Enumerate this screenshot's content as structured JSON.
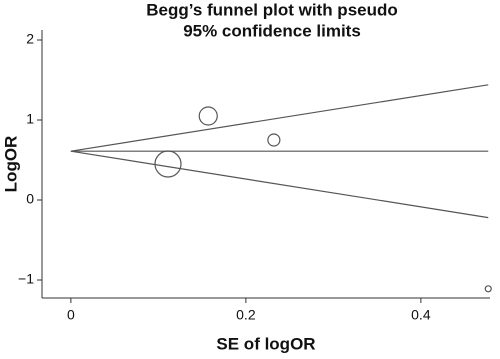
{
  "chart_data": {
    "type": "scatter",
    "title": [
      "Begg’s funnel plot with pseudo",
      "95% confidence limits"
    ],
    "x_label": "SE of logOR",
    "y_label": "LogOR",
    "x": [
      0.111,
      0.157,
      0.232,
      0.477
    ],
    "values": [
      0.45,
      1.05,
      0.75,
      -1.11
    ],
    "sizes": [
      13,
      9,
      6,
      3
    ],
    "color": "#555555",
    "lines": [
      {
        "x": [
          0,
          0.477
        ],
        "values": [
          0.61,
          1.44
        ]
      },
      {
        "x": [
          0,
          0.477
        ],
        "values": [
          0.61,
          0.61
        ]
      },
      {
        "x": [
          0,
          0.477
        ],
        "values": [
          0.61,
          -0.22
        ]
      }
    ],
    "xlim": [
      -0.033,
      0.479
    ],
    "xticks": [
      0,
      0.2,
      0.4
    ],
    "ylim": [
      -1.225,
      2.125
    ],
    "yticks": [
      {
        "value": -1,
        "label": "−1"
      },
      0,
      1,
      2
    ],
    "grid": false
  }
}
